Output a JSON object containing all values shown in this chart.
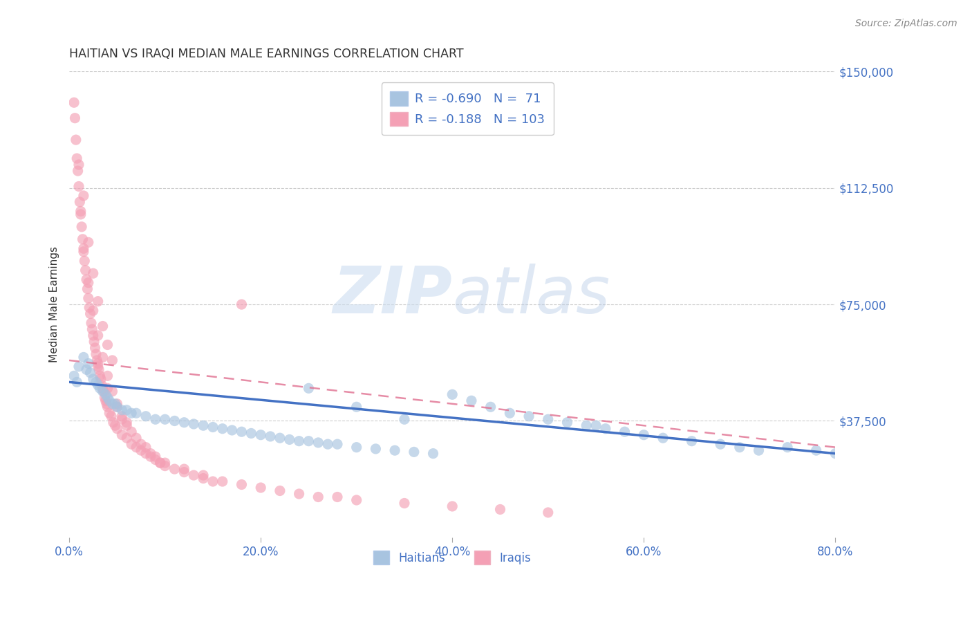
{
  "title": "HAITIAN VS IRAQI MEDIAN MALE EARNINGS CORRELATION CHART",
  "source": "Source: ZipAtlas.com",
  "ylabel": "Median Male Earnings",
  "xmin": 0.0,
  "xmax": 0.8,
  "ymin": 0,
  "ymax": 150000,
  "yticks": [
    0,
    37500,
    75000,
    112500,
    150000
  ],
  "ytick_labels": [
    "",
    "$37,500",
    "$75,000",
    "$112,500",
    "$150,000"
  ],
  "xtick_labels": [
    "0.0%",
    "20.0%",
    "40.0%",
    "60.0%",
    "80.0%"
  ],
  "xticks": [
    0.0,
    0.2,
    0.4,
    0.6,
    0.8
  ],
  "haitians_color": "#a8c4e0",
  "iraqis_color": "#f4a0b5",
  "haitians_line_color": "#4472c4",
  "iraqis_line_color": "#e07090",
  "R_haitians": -0.69,
  "N_haitians": 71,
  "R_iraqis": -0.188,
  "N_iraqis": 103,
  "title_color": "#3a3a3a",
  "axis_label_color": "#4472c4",
  "background_color": "#ffffff",
  "haitians_line_x0": 0.0,
  "haitians_line_y0": 50000,
  "haitians_line_x1": 0.8,
  "haitians_line_y1": 27000,
  "iraqis_line_x0": 0.0,
  "iraqis_line_y0": 57000,
  "iraqis_line_x1": 0.6,
  "iraqis_line_y1": 36000,
  "haitians_x": [
    0.005,
    0.008,
    0.01,
    0.015,
    0.018,
    0.02,
    0.022,
    0.025,
    0.028,
    0.03,
    0.032,
    0.035,
    0.038,
    0.04,
    0.042,
    0.045,
    0.048,
    0.05,
    0.055,
    0.06,
    0.065,
    0.07,
    0.08,
    0.09,
    0.1,
    0.11,
    0.12,
    0.13,
    0.14,
    0.15,
    0.16,
    0.17,
    0.18,
    0.19,
    0.2,
    0.21,
    0.22,
    0.23,
    0.24,
    0.25,
    0.26,
    0.27,
    0.28,
    0.3,
    0.32,
    0.34,
    0.36,
    0.38,
    0.4,
    0.42,
    0.44,
    0.46,
    0.48,
    0.5,
    0.52,
    0.54,
    0.56,
    0.58,
    0.6,
    0.62,
    0.65,
    0.68,
    0.7,
    0.72,
    0.75,
    0.78,
    0.8,
    0.25,
    0.3,
    0.35,
    0.55
  ],
  "haitians_y": [
    52000,
    50000,
    55000,
    58000,
    54000,
    56000,
    53000,
    51000,
    50000,
    49000,
    48000,
    47000,
    46000,
    45000,
    44000,
    43000,
    43000,
    42000,
    41000,
    41000,
    40000,
    40000,
    39000,
    38000,
    38000,
    37500,
    37000,
    36500,
    36000,
    35500,
    35000,
    34500,
    34000,
    33500,
    33000,
    32500,
    32000,
    31500,
    31000,
    31000,
    30500,
    30000,
    30000,
    29000,
    28500,
    28000,
    27500,
    27000,
    46000,
    44000,
    42000,
    40000,
    39000,
    38000,
    37000,
    36000,
    35000,
    34000,
    33000,
    32000,
    31000,
    30000,
    29000,
    28000,
    29000,
    28000,
    27000,
    48000,
    42000,
    38000,
    36000
  ],
  "iraqis_x": [
    0.005,
    0.006,
    0.007,
    0.008,
    0.009,
    0.01,
    0.011,
    0.012,
    0.013,
    0.014,
    0.015,
    0.016,
    0.017,
    0.018,
    0.019,
    0.02,
    0.021,
    0.022,
    0.023,
    0.024,
    0.025,
    0.026,
    0.027,
    0.028,
    0.029,
    0.03,
    0.031,
    0.032,
    0.033,
    0.034,
    0.035,
    0.036,
    0.037,
    0.038,
    0.039,
    0.04,
    0.042,
    0.044,
    0.046,
    0.048,
    0.05,
    0.055,
    0.06,
    0.065,
    0.07,
    0.075,
    0.08,
    0.085,
    0.09,
    0.095,
    0.1,
    0.11,
    0.12,
    0.13,
    0.14,
    0.15,
    0.015,
    0.02,
    0.025,
    0.03,
    0.035,
    0.04,
    0.045,
    0.01,
    0.012,
    0.015,
    0.02,
    0.025,
    0.03,
    0.035,
    0.04,
    0.045,
    0.05,
    0.055,
    0.06,
    0.07,
    0.08,
    0.09,
    0.1,
    0.12,
    0.14,
    0.16,
    0.18,
    0.2,
    0.22,
    0.24,
    0.26,
    0.28,
    0.3,
    0.35,
    0.4,
    0.45,
    0.5,
    0.055,
    0.065,
    0.075,
    0.085,
    0.095,
    0.03,
    0.04,
    0.05,
    0.06,
    0.18
  ],
  "iraqis_y": [
    140000,
    135000,
    128000,
    122000,
    118000,
    113000,
    108000,
    104000,
    100000,
    96000,
    93000,
    89000,
    86000,
    83000,
    80000,
    77000,
    74000,
    72000,
    69000,
    67000,
    65000,
    63000,
    61000,
    59000,
    57000,
    56000,
    54000,
    52000,
    51000,
    49000,
    48000,
    47000,
    45000,
    44000,
    43000,
    42000,
    40000,
    39000,
    37000,
    36000,
    35000,
    33000,
    32000,
    30000,
    29000,
    28000,
    27000,
    26000,
    25000,
    24000,
    23000,
    22000,
    21000,
    20000,
    19000,
    18000,
    110000,
    95000,
    85000,
    76000,
    68000,
    62000,
    57000,
    120000,
    105000,
    92000,
    82000,
    73000,
    65000,
    58000,
    52000,
    47000,
    43000,
    39000,
    36000,
    32000,
    29000,
    26000,
    24000,
    22000,
    20000,
    18000,
    17000,
    16000,
    15000,
    14000,
    13000,
    13000,
    12000,
    11000,
    10000,
    9000,
    8000,
    38000,
    34000,
    30000,
    27000,
    24000,
    55000,
    48000,
    42000,
    37000,
    75000
  ]
}
